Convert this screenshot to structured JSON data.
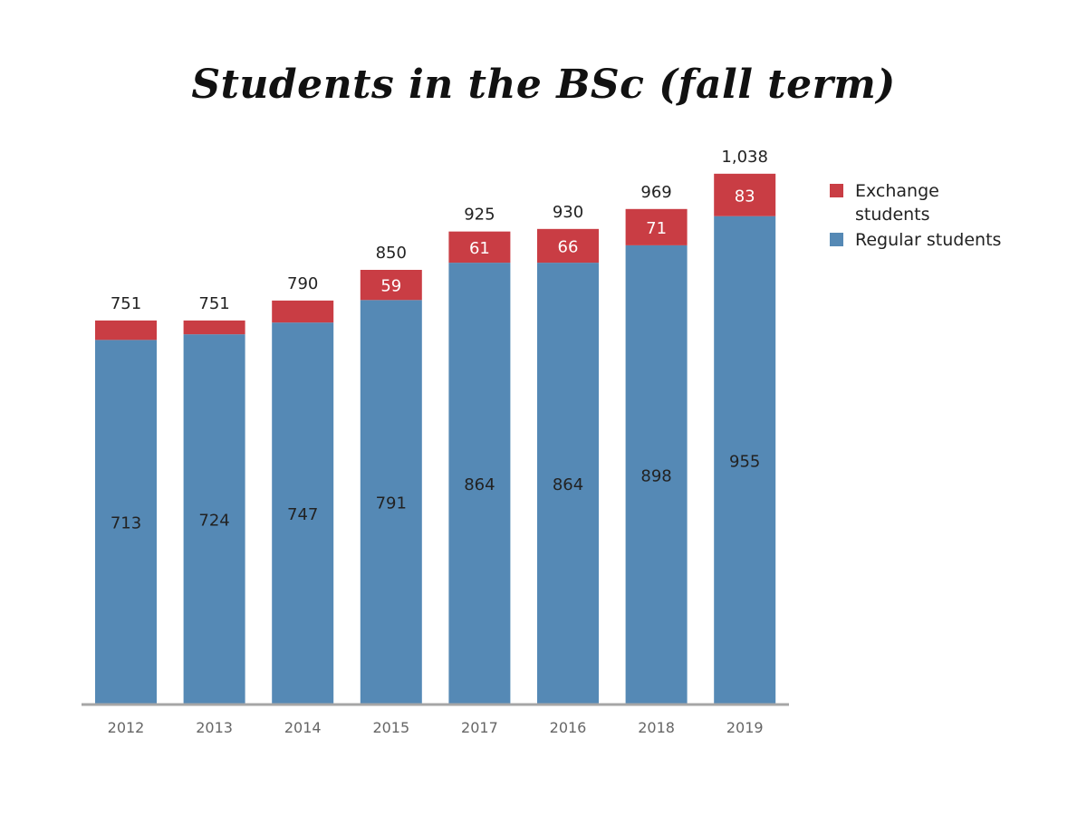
{
  "chart_data": {
    "type": "bar",
    "stacked": true,
    "title": "Students in the BSc (fall term)",
    "categories": [
      "2012",
      "2013",
      "2014",
      "2015",
      "2017",
      "2016",
      "2018",
      "2019"
    ],
    "series": [
      {
        "name": "Regular students",
        "color": "#5589b5",
        "values": [
          713,
          724,
          747,
          791,
          864,
          864,
          898,
          955
        ],
        "labels": [
          "713",
          "724",
          "747",
          "791",
          "864",
          "864",
          "898",
          "955"
        ]
      },
      {
        "name": "Exchange students",
        "color": "#c93d44",
        "values": [
          38,
          27,
          43,
          59,
          61,
          66,
          71,
          83
        ],
        "labels": [
          "",
          "",
          "",
          "59",
          "61",
          "66",
          "71",
          "83"
        ]
      }
    ],
    "totals": [
      "751",
      "751",
      "790",
      "850",
      "925",
      "930",
      "969",
      "1,038"
    ],
    "ylim": [
      0,
      1100
    ],
    "grid": false,
    "legend_position": "right"
  },
  "legend": [
    {
      "label": "Exchange students",
      "color": "#c93d44"
    },
    {
      "label": "Regular students",
      "color": "#5589b5"
    }
  ],
  "colors": {
    "axis": "#a6a6a6",
    "tick_text": "#666666",
    "label_text": "#222222",
    "inside_exchange_text": "#ffffff"
  }
}
